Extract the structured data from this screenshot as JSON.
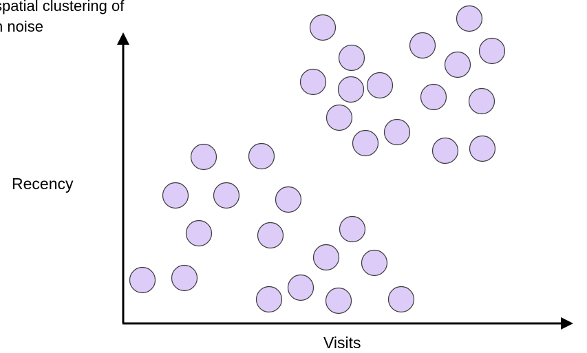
{
  "caption": {
    "line1": "spatial clustering of",
    "line2": "n noise"
  },
  "axes": {
    "y_label": "Recency",
    "x_label": "Visits"
  },
  "colors": {
    "point_fill": "#dcccf7",
    "point_stroke": "#3a3a3a",
    "axis": "#000000"
  }
}
